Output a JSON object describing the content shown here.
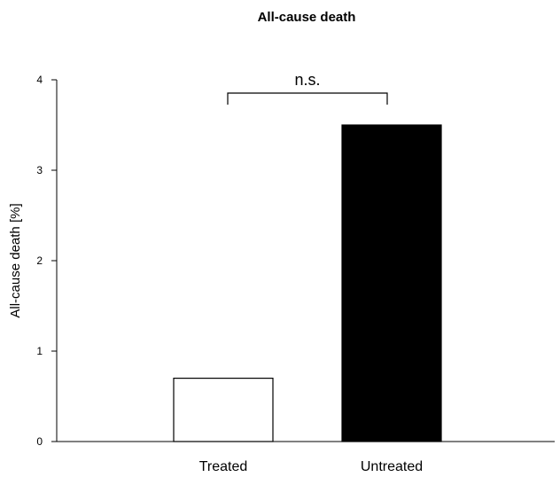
{
  "chart_data": {
    "type": "bar",
    "title": "All-cause death",
    "xlabel": "",
    "ylabel": "All-cause death [%]",
    "ylim": [
      0,
      4
    ],
    "yticks": [
      0,
      1,
      2,
      3,
      4
    ],
    "categories": [
      "Treated",
      "Untreated"
    ],
    "values": [
      0.7,
      3.5
    ],
    "bar_colors": [
      "#ffffff",
      "#000000"
    ],
    "annotation": {
      "text": "n.s.",
      "between": [
        "Treated",
        "Untreated"
      ]
    },
    "grid": false,
    "legend": "none"
  }
}
